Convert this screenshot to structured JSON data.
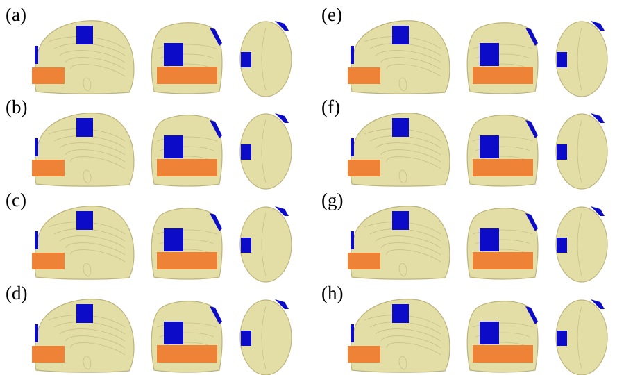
{
  "panels": [
    {
      "label": "(a)"
    },
    {
      "label": "(b)"
    },
    {
      "label": "(c)"
    },
    {
      "label": "(d)"
    },
    {
      "label": "(e)"
    },
    {
      "label": "(f)"
    },
    {
      "label": "(g)"
    },
    {
      "label": "(h)"
    }
  ]
}
